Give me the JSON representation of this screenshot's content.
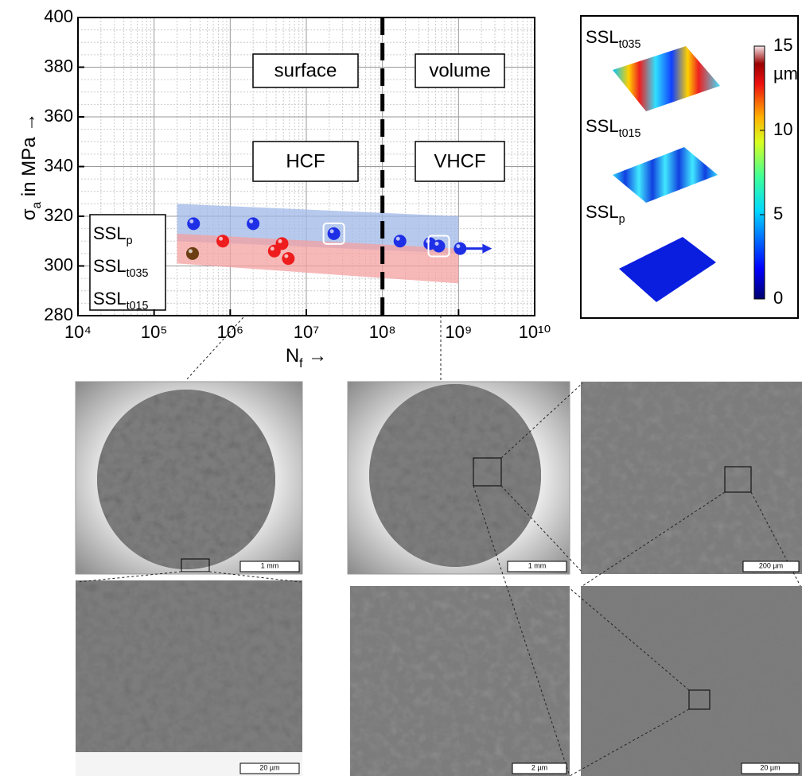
{
  "chart_data": {
    "type": "scatter",
    "x_label": [
      "N",
      "f",
      " →"
    ],
    "y_label": [
      "σ",
      "a",
      " in MPa →"
    ],
    "xscale": "log",
    "xlim": [
      10000,
      10000000000
    ],
    "xticks": [
      {
        "value": 10000,
        "label": "10⁴"
      },
      {
        "value": 100000,
        "label": "10⁵"
      },
      {
        "value": 1000000,
        "label": "10⁶"
      },
      {
        "value": 10000000,
        "label": "10⁷"
      },
      {
        "value": 100000000,
        "label": "10⁸"
      },
      {
        "value": 1000000000,
        "label": "10⁹"
      },
      {
        "value": 10000000000,
        "label": "10¹⁰"
      }
    ],
    "ylim": [
      280,
      400
    ],
    "yticks": [
      280,
      300,
      320,
      340,
      360,
      380,
      400
    ],
    "grid": true,
    "legend": "lower left",
    "divider_x": 100000000,
    "annotations": [
      "surface",
      "volume",
      "HCF",
      "VHCF"
    ],
    "bands": [
      {
        "color": "#9fb8e8",
        "x": [
          200000,
          1000000000
        ],
        "upper": [
          325,
          320
        ],
        "lower": [
          310,
          305
        ]
      },
      {
        "color": "#f4a0a0",
        "x": [
          200000,
          1000000000
        ],
        "upper": [
          313,
          307
        ],
        "lower": [
          301,
          293
        ]
      }
    ],
    "series": [
      {
        "name": [
          "SSL",
          "p"
        ],
        "color": "#1f2fe6",
        "marker_color": "#1f2fe6",
        "x": [
          330000,
          2000000,
          23000000,
          170000000,
          420000000,
          550000000,
          1050000000
        ],
        "values": [
          317,
          317,
          313,
          310,
          309,
          308,
          307
        ],
        "highlight_points": [
          2,
          5
        ],
        "runout_points": [
          6
        ]
      },
      {
        "name": [
          "SSL",
          "t035"
        ],
        "color": "#ee1c1c",
        "marker_color": "#ee1c1c",
        "x": [
          800000,
          3800000,
          4800000,
          5800000
        ],
        "values": [
          310,
          306,
          309,
          303
        ]
      },
      {
        "name": [
          "SSL",
          "t015"
        ],
        "color": "#1a7a1a",
        "marker_color": "#6b3d12",
        "x": [
          320000
        ],
        "values": [
          305
        ]
      }
    ],
    "colorbar": {
      "lim": [
        0,
        15
      ],
      "ticks": [
        0,
        5,
        10,
        15
      ],
      "unit": "µm",
      "labels": [
        {
          "text": [
            "SSL",
            "t035"
          ],
          "color": "#ee1c1c"
        },
        {
          "text": [
            "SSL",
            "t015"
          ],
          "color": "#1fcf80"
        },
        {
          "text": [
            "SSL",
            "p"
          ],
          "color": "#1f2fe6"
        }
      ]
    }
  },
  "figure_panels": {
    "scale_bars": [
      "1 mm",
      "1 mm",
      "200 µm",
      "20 µm",
      "2 µm",
      "20 µm"
    ]
  }
}
